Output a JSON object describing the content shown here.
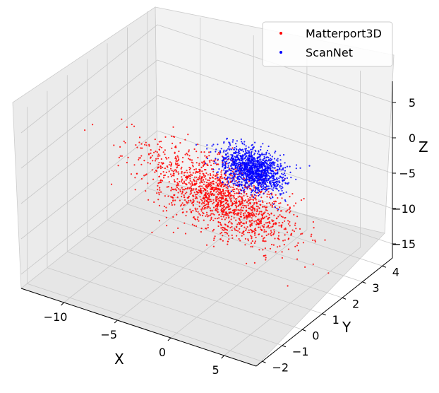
{
  "chart_data": {
    "type": "scatter",
    "projection": "3d",
    "xlabel": "X",
    "ylabel": "Y",
    "zlabel": "Z",
    "xticks": [
      "−10",
      "−5",
      "0",
      "5"
    ],
    "yticks": [
      "−2",
      "−1",
      "0",
      "1",
      "2",
      "3",
      "4"
    ],
    "zticks": [
      "−15",
      "−10",
      "−5",
      "0",
      "5"
    ],
    "xlim": [
      -14,
      8
    ],
    "ylim": [
      -2.3,
      4.5
    ],
    "zlim": [
      -17,
      8
    ],
    "grid": true,
    "legend_position": "top-right",
    "series": [
      {
        "name": "Matterport3D",
        "color": "#ff0000",
        "cloud": {
          "count": 1600,
          "x_mean": -2.5,
          "x_sd": 3.0,
          "y_mean": 1.5,
          "y_sd": 0.6,
          "z_mean": -7,
          "z_sd": 1.3
        }
      },
      {
        "name": "ScanNet",
        "color": "#0000ff",
        "cloud": {
          "count": 1300,
          "x_mean": -1.5,
          "x_sd": 1.3,
          "y_mean": 2.6,
          "y_sd": 0.35,
          "z_mean": -5,
          "z_sd": 0.9
        }
      }
    ]
  }
}
